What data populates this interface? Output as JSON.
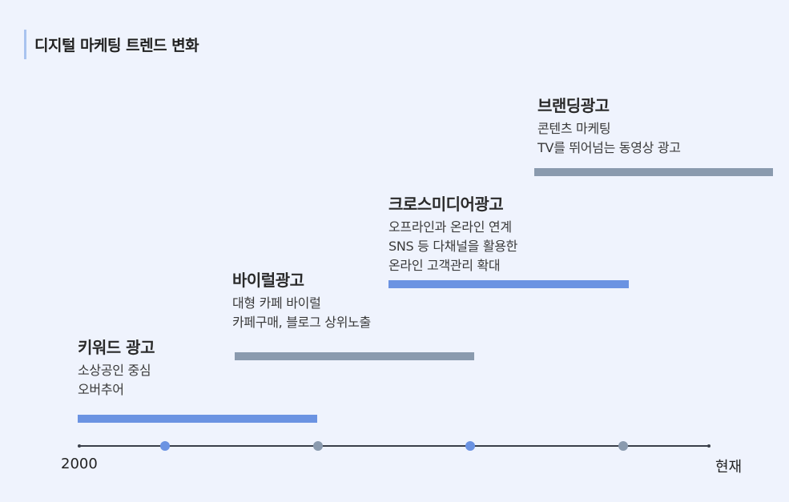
{
  "title": "디지털 마케팅 트렌드 변화",
  "phases": [
    {
      "title": "키워드 광고",
      "lines": [
        "소상공인 중심",
        "오버추어"
      ]
    },
    {
      "title": "바이럴광고",
      "lines": [
        "대형 카페 바이럴",
        "카페구매, 블로그 상위노출"
      ]
    },
    {
      "title": "크로스미디어광고",
      "lines": [
        "오프라인과 온라인 연계",
        "SNS 등 다채널을 활용한",
        "온라인 고객관리 확대"
      ]
    },
    {
      "title": "브랜딩광고",
      "lines": [
        "콘텐츠 마케팅",
        "TV를 뛰어넘는 동영상 광고"
      ]
    }
  ],
  "axis": {
    "start_label": "2000",
    "end_label": "현재"
  },
  "colors": {
    "background": "#eff3fd",
    "accent_blue": "#6b93e2",
    "accent_gray": "#8a9aae",
    "axis": "#3a3f4a",
    "title_marker": "#a9c3ef"
  }
}
